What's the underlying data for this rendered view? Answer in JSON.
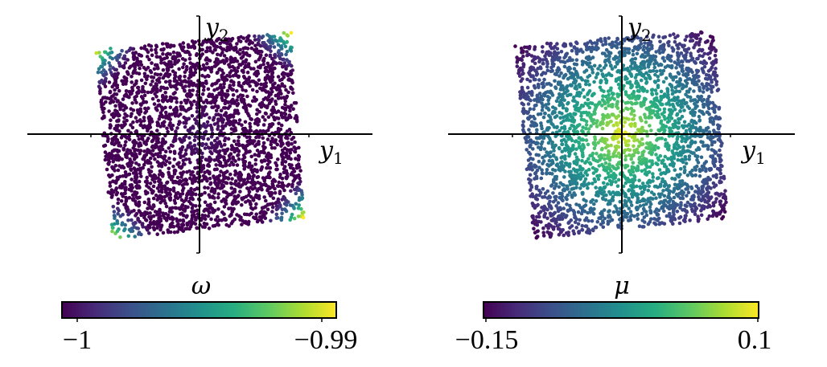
{
  "chart_data": [
    {
      "type": "scatter",
      "description_of_axes": "centered cross axes",
      "x_axis_label": "y",
      "x_axis_subscript": "1",
      "y_axis_label": "y",
      "y_axis_subscript": "2",
      "xlim": [
        -1.0,
        1.0
      ],
      "ylim": [
        -1.0,
        1.0
      ],
      "colormap": "viridis",
      "color_quantity": "omega",
      "colorbar": {
        "label": "ω",
        "tick_labels": [
          "−1",
          "−0.99"
        ],
        "range": [
          -1.0,
          -0.99
        ]
      },
      "pattern": "low values (−1) over most of the square region; values increase toward −0.99 in the four corners",
      "point_count": 3000,
      "grid": false
    },
    {
      "type": "scatter",
      "description_of_axes": "centered cross axes",
      "x_axis_label": "y",
      "x_axis_subscript": "1",
      "y_axis_label": "y",
      "y_axis_subscript": "2",
      "xlim": [
        -1.0,
        1.0
      ],
      "ylim": [
        -1.0,
        1.0
      ],
      "colormap": "viridis",
      "color_quantity": "mu",
      "colorbar": {
        "label": "μ",
        "tick_labels": [
          "−0.15",
          "0.1"
        ],
        "range": [
          -0.15,
          0.1
        ]
      },
      "pattern": "maximum 0.1 at the center, decreasing radially to −0.15 at the corners",
      "point_count": 3000,
      "grid": false
    }
  ],
  "colors": {
    "viridis": [
      "#440154",
      "#472c7a",
      "#3b518b",
      "#2c718e",
      "#21908d",
      "#27ad81",
      "#5cc863",
      "#aadc32",
      "#fde725"
    ],
    "axis": "#000000"
  }
}
